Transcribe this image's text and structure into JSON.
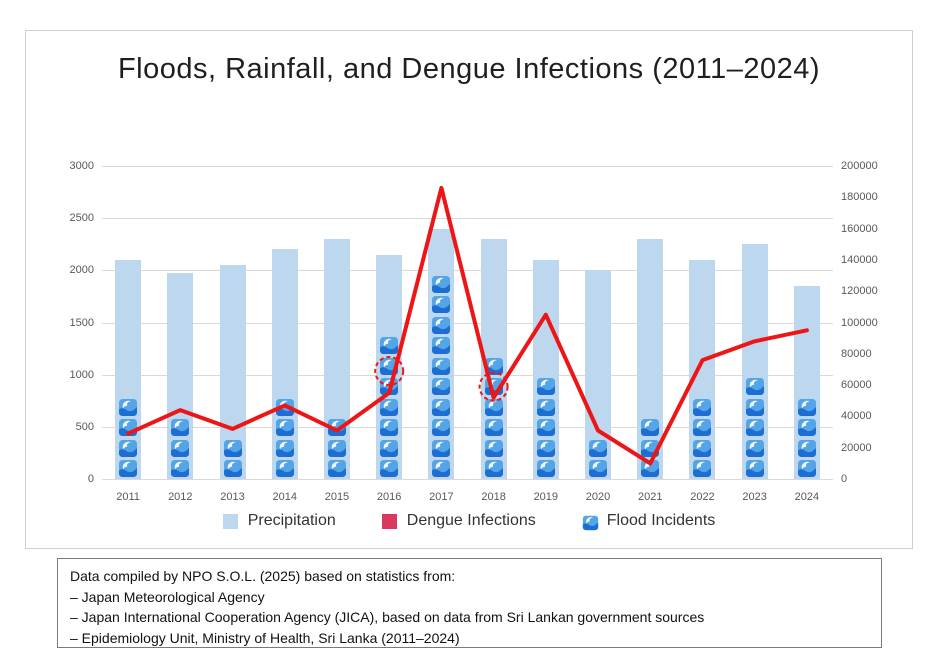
{
  "title": "Floods, Rainfall, and Dengue Infections (2011–2024)",
  "chart_data": {
    "type": "combo",
    "categories": [
      "2011",
      "2012",
      "2013",
      "2014",
      "2015",
      "2016",
      "2017",
      "2018",
      "2019",
      "2020",
      "2021",
      "2022",
      "2023",
      "2024"
    ],
    "series": [
      {
        "name": "Precipitation",
        "type": "bar",
        "axis": "left",
        "color": "#bdd7ee",
        "values": [
          2100,
          1975,
          2050,
          2200,
          2300,
          2150,
          2400,
          2300,
          2100,
          2000,
          2300,
          2100,
          2250,
          1850
        ]
      },
      {
        "name": "Dengue Infections",
        "type": "line",
        "axis": "right",
        "color": "#ed1515",
        "legend_color": "#d9395f",
        "values": [
          29000,
          44000,
          32000,
          47000,
          31000,
          55000,
          186000,
          52000,
          105000,
          31000,
          10000,
          76000,
          88000,
          95000
        ]
      },
      {
        "name": "Flood Incidents",
        "type": "icon_stack",
        "icon": "wave-icon",
        "values": [
          4,
          3,
          2,
          4,
          3,
          7,
          10,
          6,
          5,
          2,
          3,
          4,
          5,
          4
        ]
      }
    ],
    "left_axis": {
      "ticks": [
        0,
        500,
        1000,
        1500,
        2000,
        2500,
        3000
      ],
      "max": 3000
    },
    "right_axis": {
      "ticks": [
        0,
        20000,
        40000,
        60000,
        80000,
        100000,
        120000,
        140000,
        160000,
        180000,
        200000
      ],
      "max": 200000
    },
    "grid": true,
    "legend_position": "bottom",
    "annotations": [
      {
        "type": "dashed_circle",
        "category": "2016",
        "value_right": 69000,
        "color": "#ed1515"
      },
      {
        "type": "dashed_circle",
        "category": "2018",
        "value_right": 59000,
        "color": "#ed1515"
      }
    ]
  },
  "legend": {
    "items": [
      {
        "label": "Precipitation",
        "swatch": "light-blue-square",
        "color": "#bdd7ee"
      },
      {
        "label": "Dengue Infections",
        "swatch": "crimson-square",
        "color": "#d9395f"
      },
      {
        "label": "Flood Incidents",
        "swatch": "wave-icon"
      }
    ]
  },
  "footer": {
    "lines": [
      "Data compiled by NPO S.O.L. (2025) based on statistics from:",
      "– Japan Meteorological Agency",
      "– Japan International Cooperation Agency (JICA), based on data from Sri Lankan government sources",
      "– Epidemiology Unit, Ministry of Health, Sri Lanka (2011–2024)"
    ]
  }
}
